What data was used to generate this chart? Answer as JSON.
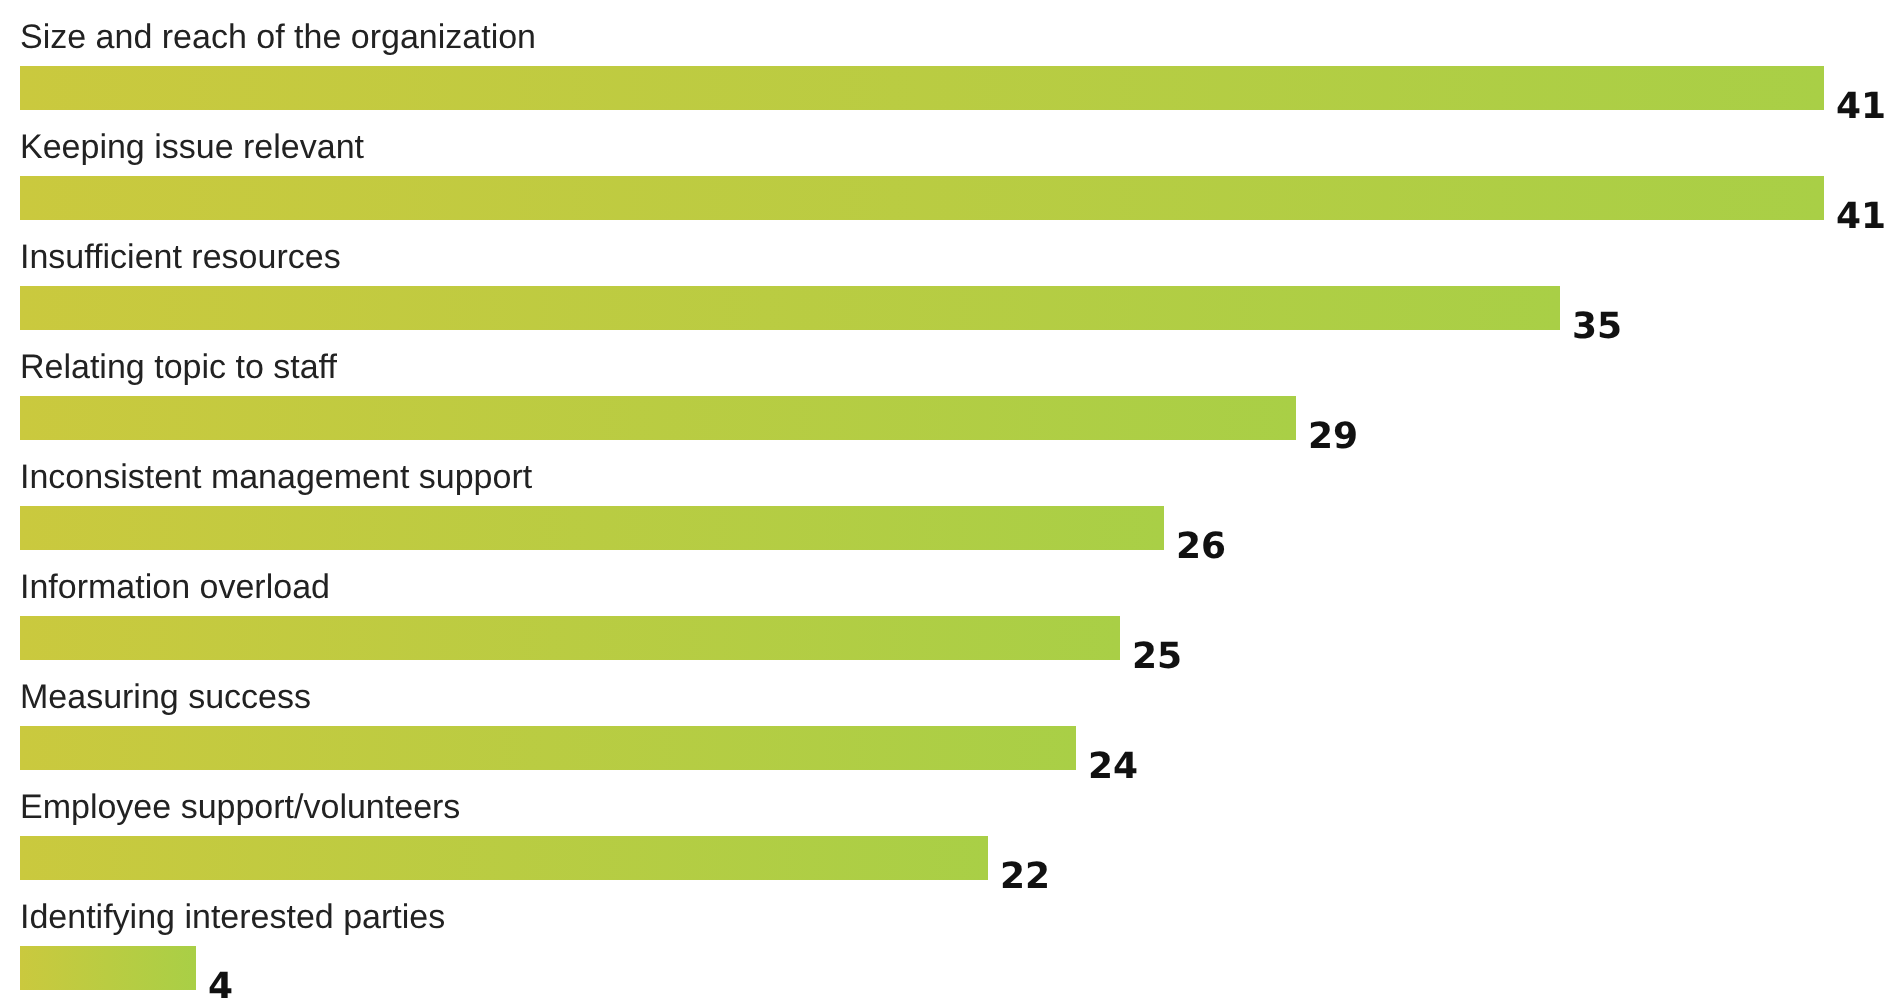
{
  "chart_data": {
    "type": "bar",
    "orientation": "horizontal",
    "data_labels": true,
    "categories": [
      "Size and reach of the organization",
      "Keeping issue relevant",
      "Insufficient resources",
      "Relating topic to staff",
      "Inconsistent management support",
      "Information overload",
      "Measuring success",
      "Employee support/volunteers",
      "Identifying interested parties"
    ],
    "values": [
      41,
      41,
      35,
      29,
      26,
      25,
      24,
      22,
      4
    ],
    "color": "#a9cf46"
  }
}
